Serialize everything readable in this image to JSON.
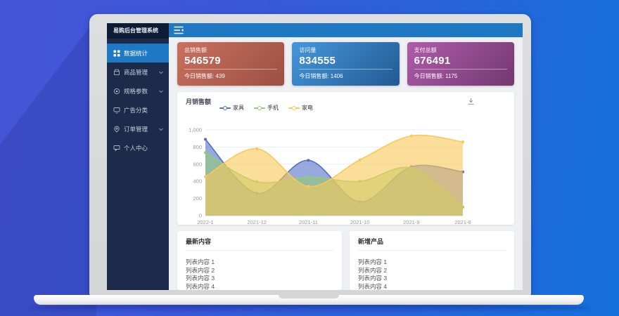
{
  "app": {
    "name": "易购后台管理系统"
  },
  "sidebar": {
    "title": "易购后台管理系统",
    "items": [
      {
        "label": "数据统计",
        "icon": "grid-icon",
        "active": true,
        "expandable": false
      },
      {
        "label": "商品管理",
        "icon": "shop-icon",
        "active": false,
        "expandable": true
      },
      {
        "label": "规格参数",
        "icon": "gear-icon",
        "active": false,
        "expandable": true
      },
      {
        "label": "广告分类",
        "icon": "monitor-icon",
        "active": false,
        "expandable": false
      },
      {
        "label": "订单管理",
        "icon": "pin-icon",
        "active": false,
        "expandable": true
      },
      {
        "label": "个人中心",
        "icon": "chat-icon",
        "active": false,
        "expandable": false
      }
    ]
  },
  "topbar": {
    "menu_icon": "menu-fold-icon"
  },
  "stats": [
    {
      "title": "总销售额",
      "value": "546579",
      "footer": "今日销售额: 439",
      "color_from": "#c9715f",
      "color_to": "#9c4f43"
    },
    {
      "title": "访问量",
      "value": "834555",
      "footer": "今日销售额: 1406",
      "color_from": "#4497dd",
      "color_to": "#235a92"
    },
    {
      "title": "支付总额",
      "value": "676491",
      "footer": "今日销售额: 1175",
      "color_from": "#b05cab",
      "color_to": "#71386f"
    }
  ],
  "chart_card": {
    "title": "月销售额",
    "download_icon": "download-icon"
  },
  "chart_data": {
    "type": "area",
    "title": "月销售额",
    "x": [
      "2022-1",
      "2021-12",
      "2021-11",
      "2021-10",
      "2021-9",
      "2021-8"
    ],
    "series": [
      {
        "name": "家具",
        "color": "#5470c6",
        "values": [
          890,
          260,
          645,
          160,
          570,
          510
        ]
      },
      {
        "name": "手机",
        "color": "#91cc75",
        "values": [
          735,
          395,
          450,
          400,
          555,
          100
        ]
      },
      {
        "name": "家电",
        "color": "#fac858",
        "values": [
          455,
          780,
          340,
          650,
          930,
          860
        ]
      }
    ],
    "ylim": [
      0,
      1000
    ],
    "yticks": [
      0,
      200,
      400,
      600,
      800,
      1000
    ],
    "grid": true,
    "smooth": true,
    "legend_position": "top-left",
    "area_opacity": 0.6
  },
  "lists": [
    {
      "title": "最新内容",
      "items": [
        "列表内容 1",
        "列表内容 2",
        "列表内容 3",
        "列表内容 4"
      ]
    },
    {
      "title": "新增产品",
      "items": [
        "列表内容 1",
        "列表内容 2",
        "列表内容 3",
        "列表内容 4"
      ]
    }
  ]
}
